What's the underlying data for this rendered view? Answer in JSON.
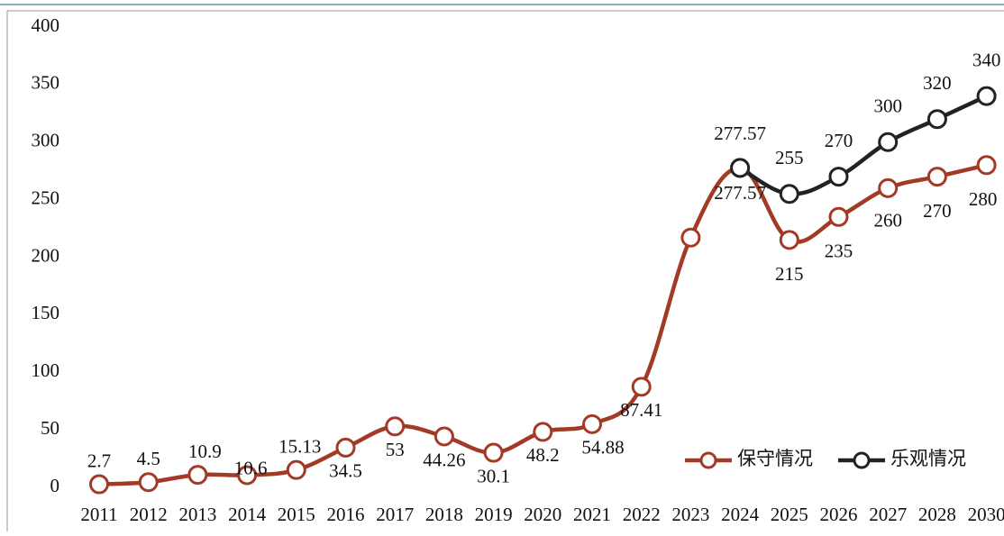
{
  "chart_data": {
    "type": "line",
    "categories": [
      "2011",
      "2012",
      "2013",
      "2014",
      "2015",
      "2016",
      "2017",
      "2018",
      "2019",
      "2020",
      "2021",
      "2022",
      "2023",
      "2024",
      "2025",
      "2026",
      "2027",
      "2028",
      "2030"
    ],
    "series": [
      {
        "name": "保守情况",
        "color": "#a23a26",
        "values": [
          2.7,
          4.5,
          10.9,
          10.6,
          15.13,
          34.5,
          53,
          44.26,
          30.1,
          48.2,
          54.88,
          87.41,
          217,
          277.57,
          215,
          235,
          260,
          270,
          280
        ],
        "value_labels": [
          "2.7",
          "4.5",
          "10.9",
          "10.6",
          "15.13",
          "34.5",
          "53",
          "44.26",
          "30.1",
          "48.2",
          "54.88",
          "87.41",
          null,
          "277.57",
          "215",
          "235",
          "260",
          "270",
          "280"
        ]
      },
      {
        "name": "乐观情况",
        "color": "#222222",
        "values": [
          null,
          null,
          null,
          null,
          null,
          null,
          null,
          null,
          null,
          null,
          null,
          null,
          null,
          277.57,
          255,
          270,
          300,
          320,
          340
        ],
        "value_labels": [
          null,
          null,
          null,
          null,
          null,
          null,
          null,
          null,
          null,
          null,
          null,
          null,
          null,
          "277.57",
          "255",
          "270",
          "300",
          "320",
          "340"
        ]
      }
    ],
    "ylim": [
      0,
      400
    ],
    "yticks": [
      0,
      50,
      100,
      150,
      200,
      250,
      300,
      350,
      400
    ],
    "legend": "lower right"
  }
}
